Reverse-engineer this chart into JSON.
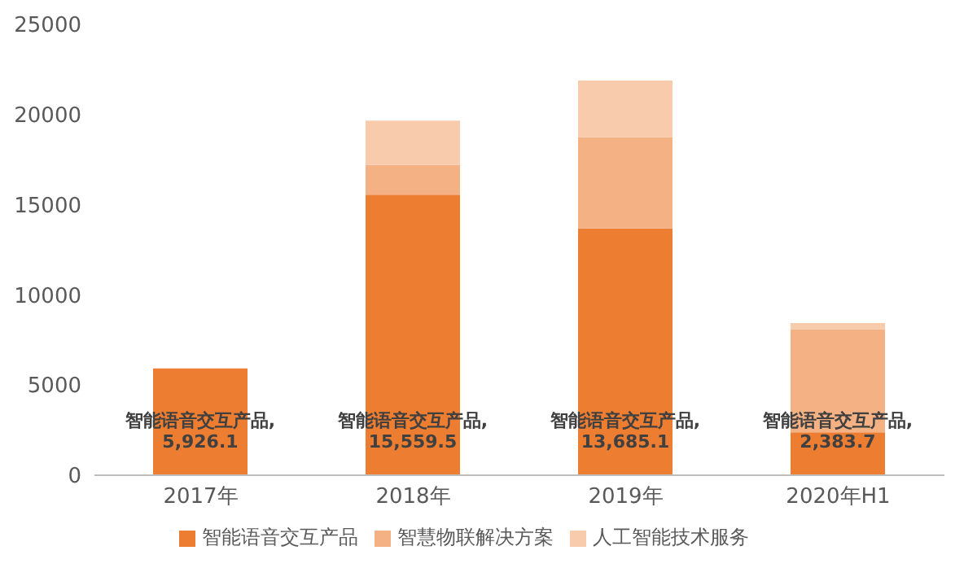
{
  "chart_data": {
    "type": "bar",
    "stacked": true,
    "categories": [
      "2017年",
      "2018年",
      "2019年",
      "2020年H1"
    ],
    "series": [
      {
        "name": "智能语音交互产品",
        "color": "#ed7d31",
        "values": [
          5926.1,
          15559.5,
          13685.1,
          2383.7
        ],
        "value_labels": [
          "智能语音交互产品,\n5,926.1",
          "智能语音交互产品,\n15,559.5",
          "智能语音交互产品,\n13,685.1",
          "智能语音交互产品,\n2,383.7"
        ]
      },
      {
        "name": "智慧物联解决方案",
        "color": "#f4b183",
        "values": [
          0,
          1650,
          5050,
          5700
        ]
      },
      {
        "name": "人工智能技术服务",
        "color": "#f8cbad",
        "values": [
          0,
          2450,
          3150,
          350
        ]
      }
    ],
    "ylim": [
      0,
      25000
    ],
    "yticks": [
      0,
      5000,
      10000,
      15000,
      20000,
      25000
    ],
    "grid": false,
    "legend": "bottom"
  }
}
